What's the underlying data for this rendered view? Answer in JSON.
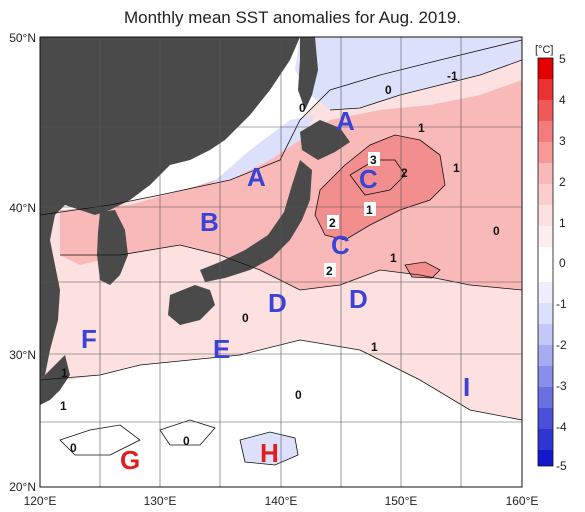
{
  "title": "Monthly mean SST anomalies for Aug. 2019.",
  "colors": {
    "land": "#4a4a4a",
    "ocean_neutral": "#ffffff",
    "warm_1": "#fde0e0",
    "warm_2": "#f9b9b9",
    "warm_3": "#f38e8e",
    "cold_1": "#dde0fb",
    "label_blue": "#3a43d6",
    "label_red": "#e01e1e"
  },
  "lat_labels": [
    "50°N",
    "40°N",
    "30°N",
    "20°N"
  ],
  "lon_labels": [
    "120°E",
    "130°E",
    "140°E",
    "150°E",
    "160°E"
  ],
  "colorbar": {
    "unit": "[°C]",
    "ticks": [
      "5",
      "4",
      "3",
      "2",
      "1",
      "0",
      "-1",
      "-2",
      "-3",
      "-4",
      "-5"
    ]
  },
  "region_labels": [
    {
      "text": "A",
      "color": "blue"
    },
    {
      "text": "A",
      "color": "blue"
    },
    {
      "text": "B",
      "color": "blue"
    },
    {
      "text": "C",
      "color": "blue"
    },
    {
      "text": "C",
      "color": "blue"
    },
    {
      "text": "D",
      "color": "blue"
    },
    {
      "text": "D",
      "color": "blue"
    },
    {
      "text": "E",
      "color": "blue"
    },
    {
      "text": "F",
      "color": "blue"
    },
    {
      "text": "I",
      "color": "blue"
    },
    {
      "text": "G",
      "color": "red"
    },
    {
      "text": "H",
      "color": "red"
    }
  ],
  "contour_labels": [
    "0",
    "0",
    "-1",
    "1",
    "1",
    "3",
    "2",
    "1",
    "2",
    "1",
    "0",
    "2",
    "1",
    "0",
    "1",
    "1",
    "0",
    "0",
    "0"
  ]
}
